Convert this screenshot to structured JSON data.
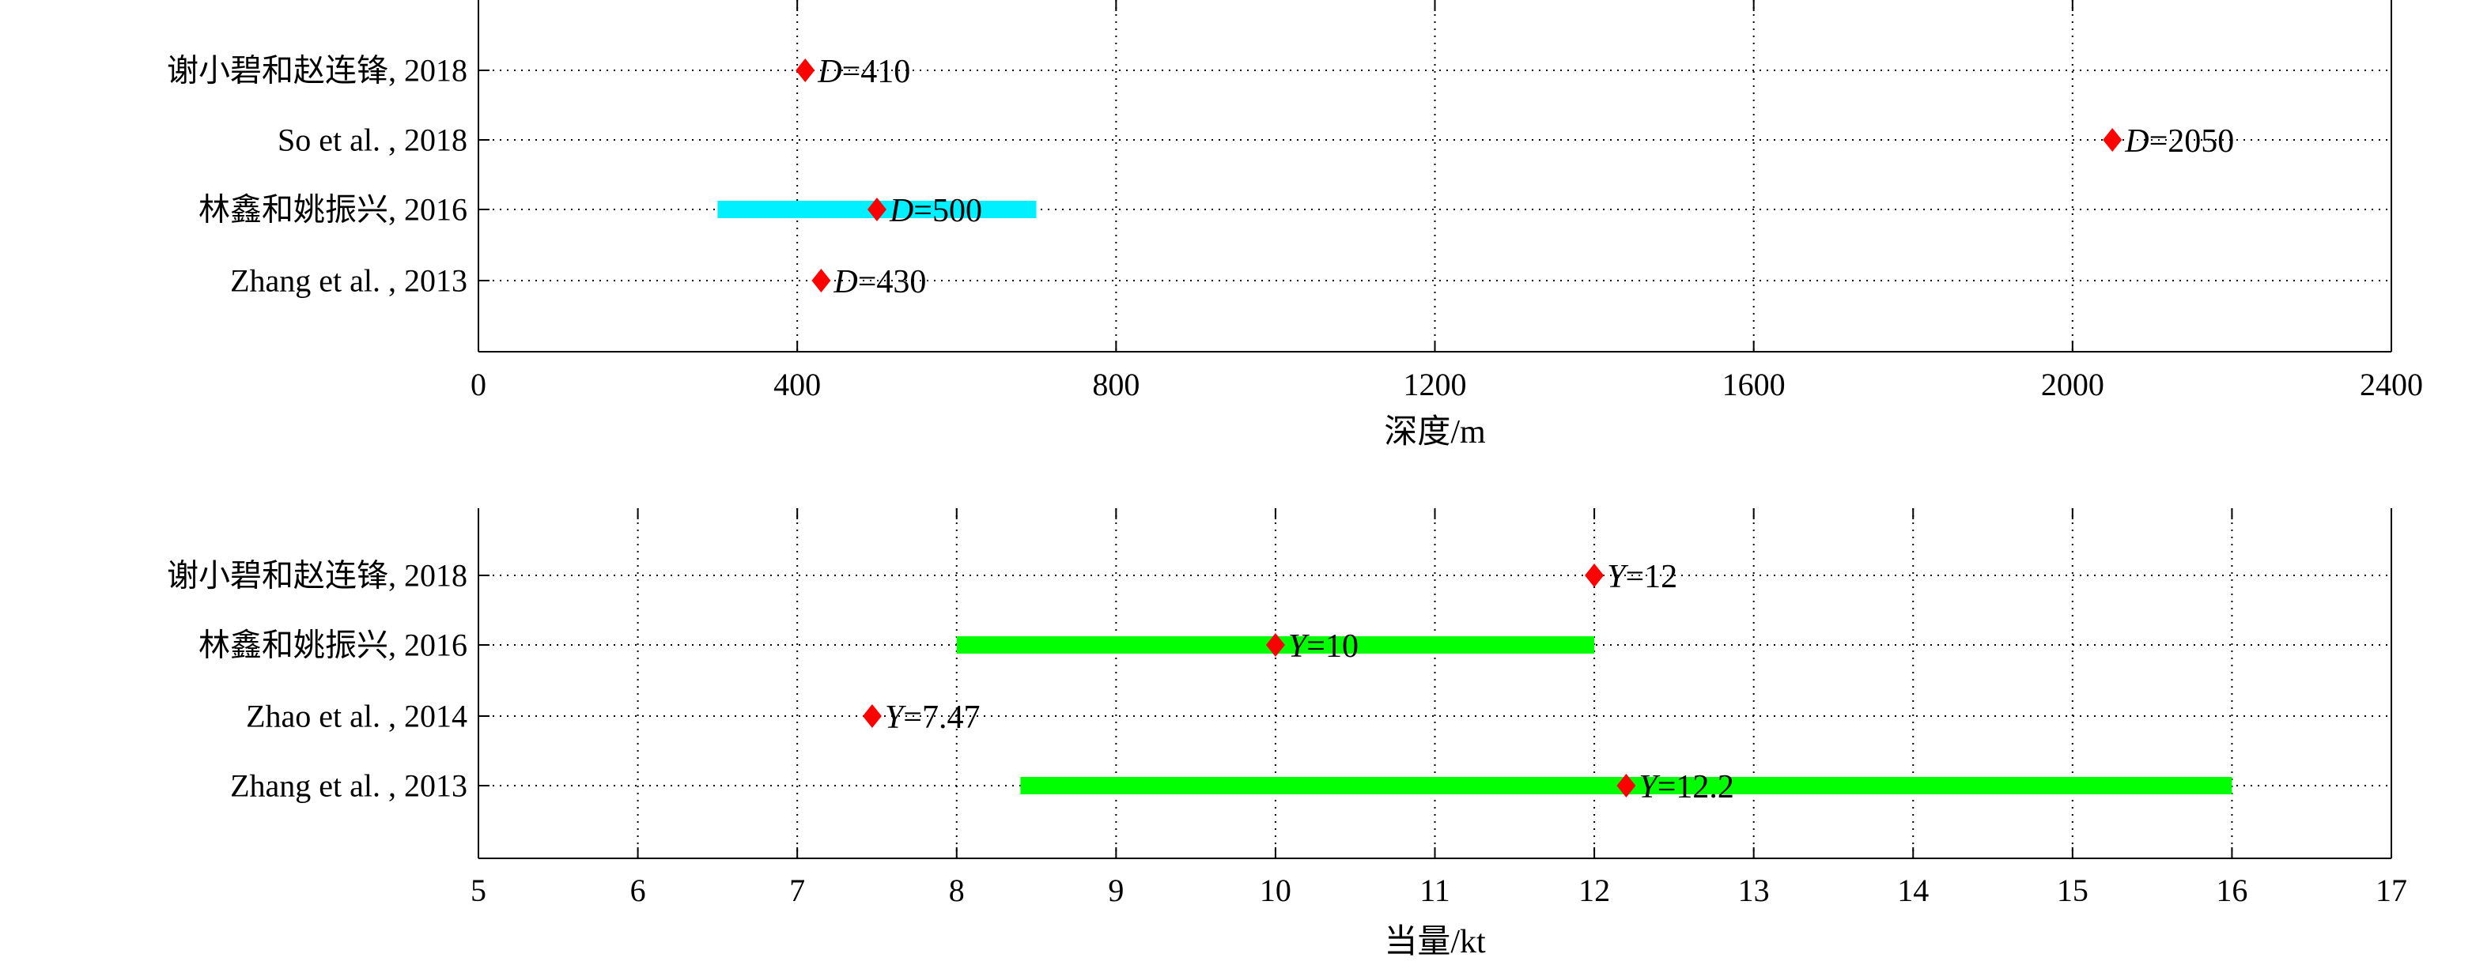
{
  "chart_data": [
    {
      "type": "scatter",
      "title": "",
      "xlabel": "深度/m",
      "ylabel": "",
      "xlim": [
        0,
        2400
      ],
      "xticks": [
        0,
        400,
        800,
        1200,
        1600,
        2000,
        2400
      ],
      "grid": true,
      "range_color": "#00f0ff",
      "marker_color": "#ff0000",
      "categories": [
        "谢小碧和赵连锋, 2018",
        "So et al. , 2018",
        "林鑫和姚振兴, 2016",
        "Zhang et al. , 2013"
      ],
      "points": [
        {
          "label": "谢小碧和赵连锋, 2018",
          "value": 410,
          "text_symbol": "D",
          "text_value": "=410",
          "range": null
        },
        {
          "label": "So et al. , 2018",
          "value": 2050,
          "text_symbol": "D",
          "text_value": "=2050",
          "range": null
        },
        {
          "label": "林鑫和姚振兴, 2016",
          "value": 500,
          "text_symbol": "D",
          "text_value": "=500",
          "range": [
            300,
            700
          ]
        },
        {
          "label": "Zhang et al. , 2013",
          "value": 430,
          "text_symbol": "D",
          "text_value": "=430",
          "range": null
        }
      ]
    },
    {
      "type": "scatter",
      "title": "",
      "xlabel": "当量/kt",
      "ylabel": "",
      "xlim": [
        5,
        17
      ],
      "xticks": [
        5,
        6,
        7,
        8,
        9,
        10,
        11,
        12,
        13,
        14,
        15,
        16,
        17
      ],
      "grid": true,
      "range_color": "#00ff00",
      "marker_color": "#ff0000",
      "categories": [
        "谢小碧和赵连锋, 2018",
        "林鑫和姚振兴, 2016",
        "Zhao et al. , 2014",
        "Zhang et al. , 2013"
      ],
      "points": [
        {
          "label": "谢小碧和赵连锋, 2018",
          "value": 12,
          "text_symbol": "Y",
          "text_value": "=12",
          "range": null
        },
        {
          "label": "林鑫和姚振兴, 2016",
          "value": 10,
          "text_symbol": "Y",
          "text_value": "=10",
          "range": [
            8,
            12
          ]
        },
        {
          "label": "Zhao et al. , 2014",
          "value": 7.47,
          "text_symbol": "Y",
          "text_value": "=7.47",
          "range": null
        },
        {
          "label": "Zhang et al. , 2013",
          "value": 12.2,
          "text_symbol": "Y",
          "text_value": "=12.2",
          "range": [
            8.4,
            16
          ]
        }
      ]
    }
  ]
}
